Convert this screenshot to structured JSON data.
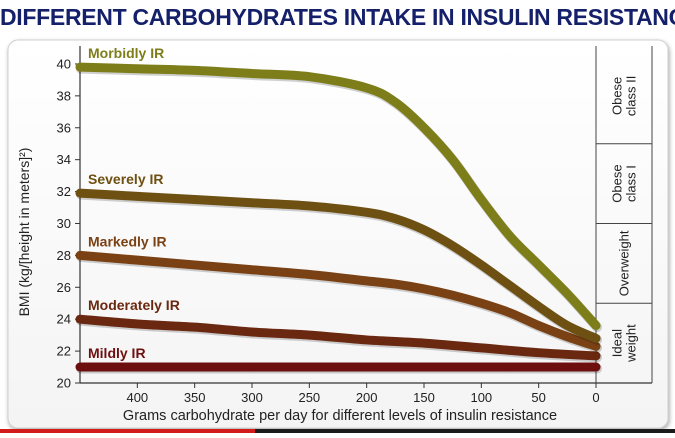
{
  "title": "DIFFERENT CARBOHYDRATES INTAKE IN INSULIN RESISTANCE",
  "chart_data": {
    "type": "line",
    "xlabel": "Grams carbohydrate per day for different levels of insulin resistance",
    "ylabel": "BMI (kg/[height in meters]²)",
    "xlim": [
      450,
      0
    ],
    "ylim": [
      20,
      41
    ],
    "xticks": [
      400,
      350,
      300,
      250,
      200,
      150,
      100,
      50,
      0
    ],
    "yticks": [
      20,
      22,
      24,
      26,
      28,
      30,
      32,
      34,
      36,
      38,
      40
    ],
    "grid": false,
    "legend": "labels placed at the left end of each line",
    "series": [
      {
        "name": "Morbidly IR",
        "color": "#7d7e1a",
        "x": [
          450,
          400,
          350,
          300,
          250,
          200,
          175,
          150,
          125,
          100,
          75,
          50,
          25,
          0
        ],
        "y": [
          39.8,
          39.7,
          39.6,
          39.4,
          39.2,
          38.5,
          37.6,
          36.0,
          34.0,
          31.5,
          29.2,
          27.4,
          25.6,
          23.6
        ]
      },
      {
        "name": "Severely IR",
        "color": "#6d5012",
        "x": [
          450,
          400,
          350,
          300,
          250,
          200,
          175,
          150,
          125,
          100,
          75,
          50,
          25,
          0
        ],
        "y": [
          31.9,
          31.7,
          31.5,
          31.3,
          31.1,
          30.7,
          30.3,
          29.6,
          28.6,
          27.4,
          26.1,
          24.8,
          23.6,
          22.8
        ]
      },
      {
        "name": "Markedly IR",
        "color": "#7a4114",
        "x": [
          450,
          400,
          350,
          300,
          250,
          200,
          175,
          150,
          125,
          100,
          75,
          50,
          25,
          0
        ],
        "y": [
          28.0,
          27.7,
          27.4,
          27.1,
          26.8,
          26.4,
          26.2,
          25.9,
          25.5,
          25.0,
          24.4,
          23.6,
          22.9,
          22.3
        ]
      },
      {
        "name": "Moderately IR",
        "color": "#6a2810",
        "x": [
          450,
          400,
          350,
          300,
          250,
          200,
          150,
          100,
          50,
          0
        ],
        "y": [
          24.0,
          23.7,
          23.5,
          23.2,
          23.0,
          22.7,
          22.5,
          22.2,
          21.9,
          21.7
        ]
      },
      {
        "name": "Mildly IR",
        "color": "#6e0f0f",
        "x": [
          450,
          0
        ],
        "y": [
          21.0,
          21.0
        ]
      }
    ],
    "bands": [
      {
        "label": "Ideal weight",
        "y_from": 20,
        "y_to": 25
      },
      {
        "label": "Overweight",
        "y_from": 25,
        "y_to": 30
      },
      {
        "label": "Obese class I",
        "y_from": 30,
        "y_to": 35
      },
      {
        "label": "Obese class II",
        "y_from": 35,
        "y_to": 41
      }
    ]
  }
}
